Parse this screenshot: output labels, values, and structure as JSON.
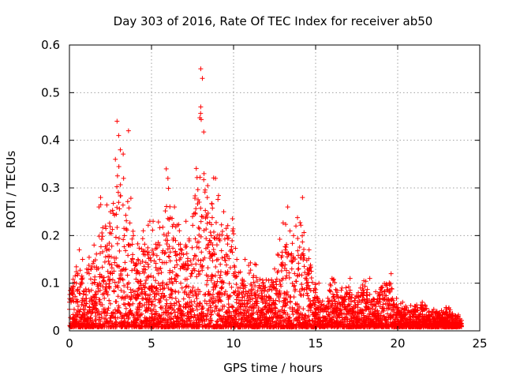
{
  "chart_data": {
    "type": "scatter",
    "title": "Day 303 of 2016, Rate Of TEC Index for receiver ab50",
    "xlabel": "GPS time / hours",
    "ylabel": "ROTI / TECUs",
    "xlim": [
      0,
      25
    ],
    "ylim": [
      0,
      0.6
    ],
    "xticks": [
      "0",
      "5",
      "10",
      "15",
      "20",
      "25"
    ],
    "yticks": [
      "0",
      "0.1",
      "0.2",
      "0.3",
      "0.4",
      "0.5",
      "0.6"
    ],
    "grid": true,
    "marker": "plus",
    "color": "#ff0000",
    "series": [
      {
        "name": "ROTI",
        "envelope_hours": [
          0,
          0.5,
          1,
          1.5,
          2,
          2.5,
          3,
          3.5,
          4,
          4.5,
          5,
          5.5,
          6,
          6.5,
          7,
          7.5,
          8,
          8.5,
          9,
          9.5,
          10,
          10.5,
          11,
          11.5,
          12,
          12.5,
          13,
          13.5,
          14,
          14.5,
          15,
          15.5,
          16,
          16.5,
          17,
          17.5,
          18,
          18.5,
          19,
          19.5,
          20,
          20.5,
          21,
          21.5,
          22,
          22.5,
          23,
          23.5,
          24
        ],
        "envelope_max": [
          0.09,
          0.17,
          0.13,
          0.19,
          0.29,
          0.26,
          0.44,
          0.42,
          0.2,
          0.21,
          0.23,
          0.23,
          0.34,
          0.26,
          0.23,
          0.24,
          0.55,
          0.33,
          0.32,
          0.24,
          0.25,
          0.15,
          0.15,
          0.14,
          0.11,
          0.13,
          0.26,
          0.22,
          0.28,
          0.18,
          0.1,
          0.06,
          0.11,
          0.09,
          0.11,
          0.08,
          0.11,
          0.08,
          0.1,
          0.12,
          0.06,
          0.05,
          0.05,
          0.06,
          0.04,
          0.04,
          0.05,
          0.03,
          0.02
        ],
        "points": [
          [
            0.1,
            0.09
          ],
          [
            0.1,
            0.06
          ],
          [
            0.6,
            0.17
          ],
          [
            0.8,
            0.15
          ],
          [
            1.2,
            0.12
          ],
          [
            1.5,
            0.18
          ],
          [
            1.8,
            0.26
          ],
          [
            1.9,
            0.28
          ],
          [
            2.2,
            0.22
          ],
          [
            2.5,
            0.25
          ],
          [
            2.8,
            0.36
          ],
          [
            2.9,
            0.44
          ],
          [
            3.0,
            0.41
          ],
          [
            3.1,
            0.38
          ],
          [
            3.3,
            0.32
          ],
          [
            3.6,
            0.42
          ],
          [
            3.9,
            0.2
          ],
          [
            4.5,
            0.21
          ],
          [
            4.9,
            0.23
          ],
          [
            5.1,
            0.23
          ],
          [
            5.5,
            0.18
          ],
          [
            5.9,
            0.34
          ],
          [
            6.0,
            0.32
          ],
          [
            6.4,
            0.26
          ],
          [
            6.7,
            0.21
          ],
          [
            7.1,
            0.23
          ],
          [
            7.5,
            0.24
          ],
          [
            8.0,
            0.55
          ],
          [
            8.1,
            0.53
          ],
          [
            8.0,
            0.47
          ],
          [
            8.2,
            0.33
          ],
          [
            8.4,
            0.28
          ],
          [
            8.9,
            0.32
          ],
          [
            9.4,
            0.25
          ],
          [
            9.6,
            0.2
          ],
          [
            10.2,
            0.15
          ],
          [
            10.7,
            0.15
          ],
          [
            11.3,
            0.14
          ],
          [
            11.8,
            0.1
          ],
          [
            12.5,
            0.13
          ],
          [
            13.3,
            0.26
          ],
          [
            13.8,
            0.22
          ],
          [
            14.2,
            0.28
          ],
          [
            14.6,
            0.17
          ],
          [
            15.2,
            0.1
          ],
          [
            16.0,
            0.11
          ],
          [
            16.6,
            0.09
          ],
          [
            17.1,
            0.11
          ],
          [
            17.6,
            0.08
          ],
          [
            18.3,
            0.11
          ],
          [
            19.0,
            0.09
          ],
          [
            19.6,
            0.12
          ],
          [
            20.3,
            0.06
          ],
          [
            21.5,
            0.06
          ],
          [
            22.8,
            0.04
          ],
          [
            23.5,
            0.03
          ]
        ]
      }
    ]
  }
}
